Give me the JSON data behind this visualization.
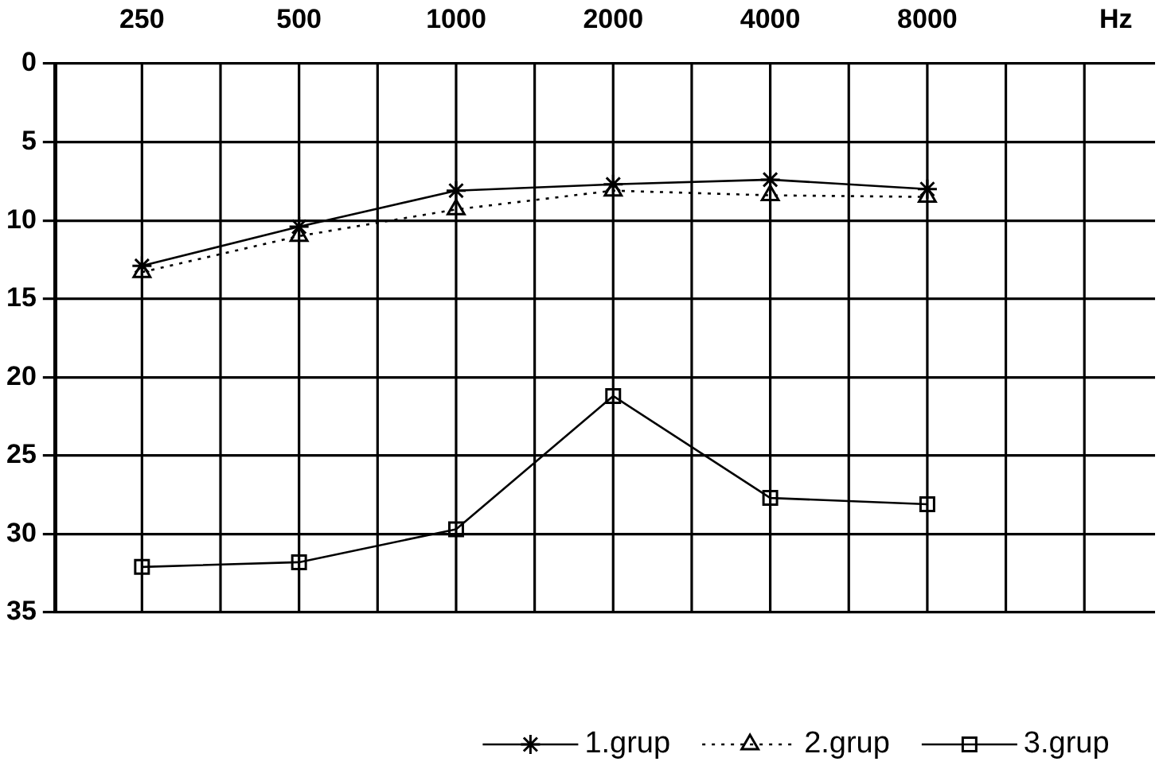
{
  "chart_data": {
    "type": "line",
    "xlabel": "Hz",
    "categories": [
      "250",
      "500",
      "1000",
      "2000",
      "4000",
      "8000"
    ],
    "series": [
      {
        "name": "1.grup",
        "color": "#000000",
        "marker": "cross",
        "line_style": "solid",
        "values": [
          12.9,
          10.4,
          8.1,
          7.7,
          7.4,
          8.0
        ]
      },
      {
        "name": "2.grup",
        "color": "#000000",
        "marker": "triangle",
        "line_style": "dotted",
        "values": [
          13.3,
          11.0,
          9.3,
          8.1,
          8.4,
          8.5
        ]
      },
      {
        "name": "3.grup",
        "color": "#000000",
        "marker": "square",
        "line_style": "solid",
        "values": [
          32.1,
          31.8,
          29.7,
          21.2,
          27.7,
          28.1
        ]
      }
    ],
    "ylim": [
      35,
      0
    ],
    "yticks": [
      0,
      5,
      10,
      15,
      20,
      25,
      30,
      35
    ],
    "grid": true,
    "legend": "bottom"
  }
}
